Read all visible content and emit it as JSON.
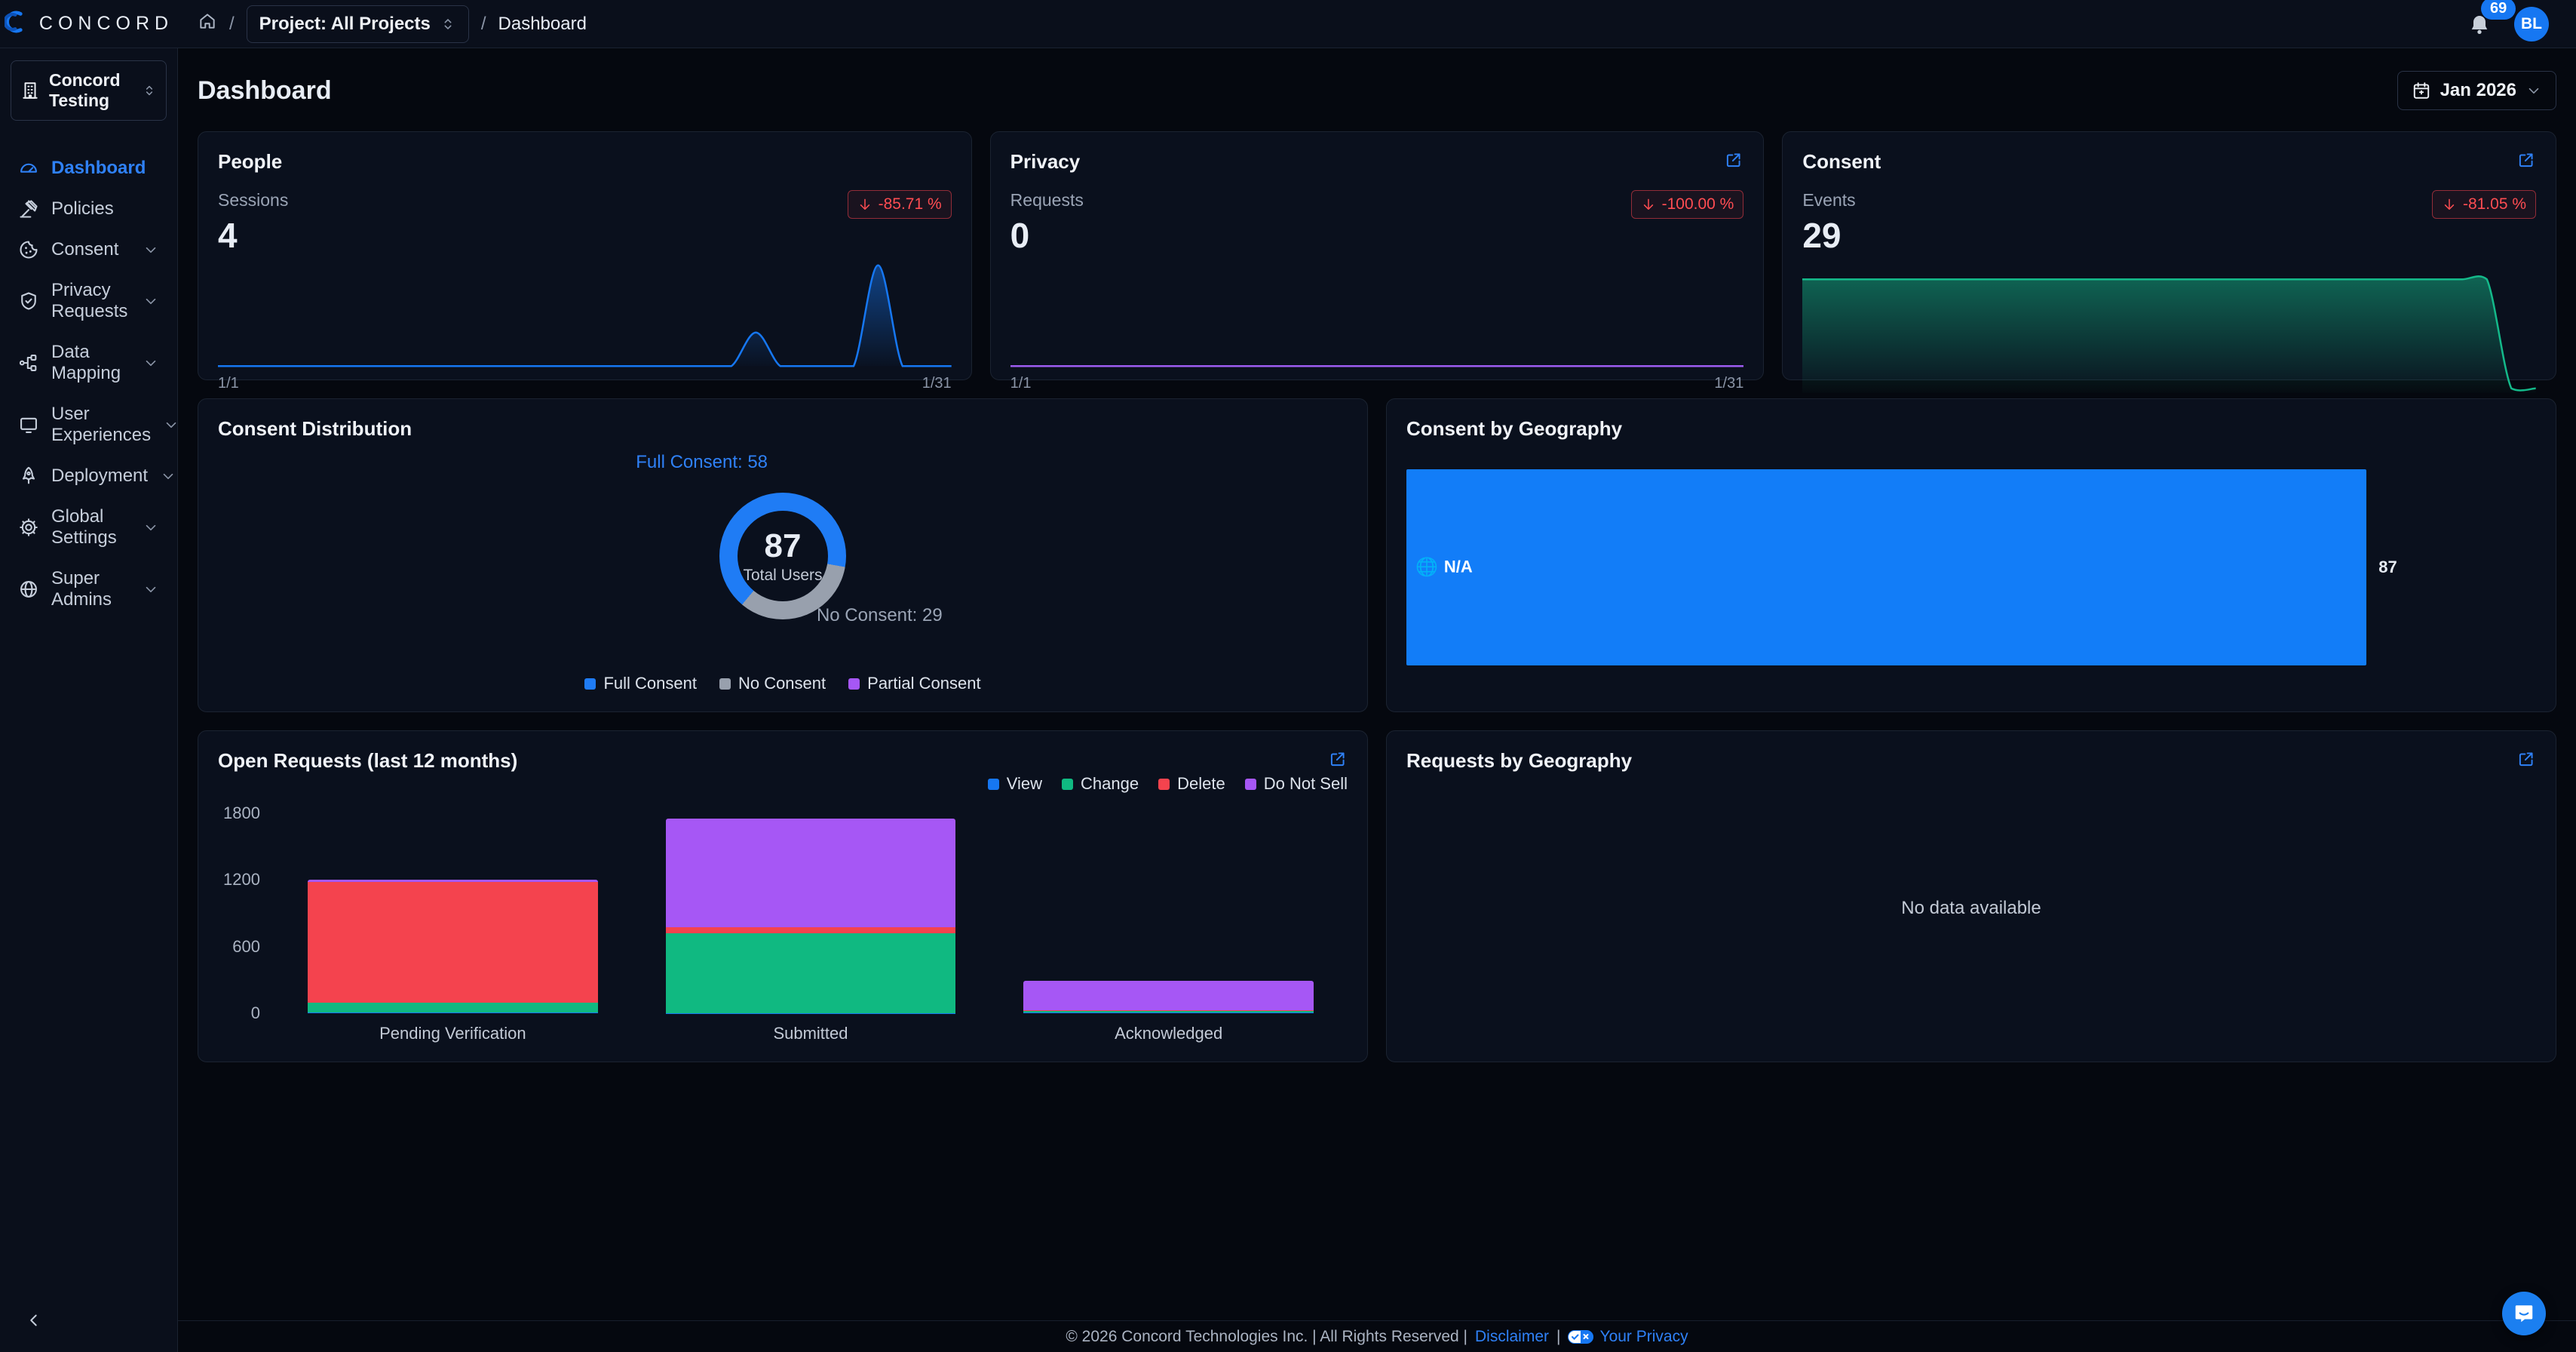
{
  "topbar": {
    "brand": "CONCORD",
    "breadcrumb_sep": "/",
    "project_selector": "Project: All Projects",
    "breadcrumb_current": "Dashboard",
    "notification_count": "69",
    "avatar_initials": "BL"
  },
  "sidebar": {
    "workspace": "Concord Testing",
    "items": [
      {
        "label": "Dashboard",
        "active": true,
        "expandable": false
      },
      {
        "label": "Policies",
        "active": false,
        "expandable": false
      },
      {
        "label": "Consent",
        "active": false,
        "expandable": true
      },
      {
        "label": "Privacy Requests",
        "active": false,
        "expandable": true
      },
      {
        "label": "Data Mapping",
        "active": false,
        "expandable": true
      },
      {
        "label": "User Experiences",
        "active": false,
        "expandable": true
      },
      {
        "label": "Deployment",
        "active": false,
        "expandable": true
      },
      {
        "label": "Global Settings",
        "active": false,
        "expandable": true
      },
      {
        "label": "Super Admins",
        "active": false,
        "expandable": true
      }
    ]
  },
  "header": {
    "title": "Dashboard",
    "period": "Jan 2026"
  },
  "cards": {
    "people": {
      "title": "People",
      "metric_label": "Sessions",
      "metric_value": "4",
      "delta": "-85.71 %"
    },
    "privacy": {
      "title": "Privacy",
      "metric_label": "Requests",
      "metric_value": "0",
      "delta": "-100.00 %"
    },
    "consent": {
      "title": "Consent",
      "metric_label": "Events",
      "metric_value": "29",
      "delta": "-81.05 %"
    },
    "consent_distribution": {
      "title": "Consent Distribution",
      "center_value": "87",
      "center_label": "Total Users",
      "callout_full": "Full Consent: 58",
      "callout_none": "No Consent: 29"
    },
    "consent_by_geography": {
      "title": "Consent by Geography",
      "bar_label": "N/A",
      "bar_value": "87"
    },
    "open_requests": {
      "title": "Open Requests (last 12 months)"
    },
    "requests_by_geography": {
      "title": "Requests by Geography",
      "empty": "No data available"
    }
  },
  "footer": {
    "copyright": "© 2026 Concord Technologies Inc. | All Rights Reserved |",
    "disclaimer_label": "Disclaimer",
    "sep": "|",
    "privacy_label": "Your Privacy"
  },
  "colors": {
    "accent_blue": "#1677f2",
    "active_link": "#2f81f7",
    "delta_red": "#ff4d52",
    "donut_gray": "#98a0ad",
    "purple": "#a657f5",
    "green": "#10b981"
  },
  "chart_data": [
    {
      "id": "people_sessions",
      "type": "area",
      "title": "People - Sessions",
      "x_start": "1/1",
      "x_end": "1/31",
      "ymax": 3.2,
      "color": "#1677f2",
      "values": [
        0,
        0,
        0,
        0,
        0,
        0,
        0,
        0,
        0,
        0,
        0,
        0,
        0,
        0,
        0,
        0,
        0,
        0,
        0,
        0,
        0,
        0,
        1,
        0,
        0,
        0,
        0,
        3,
        0,
        0,
        0
      ]
    },
    {
      "id": "privacy_requests",
      "type": "line",
      "title": "Privacy - Requests",
      "x_start": "1/1",
      "x_end": "1/31",
      "ymax": 1,
      "color": "#9d5cf0",
      "values": [
        0,
        0,
        0,
        0,
        0,
        0,
        0,
        0,
        0,
        0,
        0,
        0,
        0,
        0,
        0,
        0,
        0,
        0,
        0,
        0,
        0,
        0,
        0,
        0,
        0,
        0,
        0,
        0,
        0,
        0,
        0
      ]
    },
    {
      "id": "consent_events",
      "type": "area",
      "title": "Consent - Events",
      "x_start": "1/1",
      "x_end": "1/31",
      "ymax": 1.06,
      "color": "#14b98a",
      "values": [
        1,
        1,
        1,
        1,
        1,
        1,
        1,
        1,
        1,
        1,
        1,
        1,
        1,
        1,
        1,
        1,
        1,
        1,
        1,
        1,
        1,
        1,
        1,
        1,
        1,
        1,
        1,
        1,
        1,
        0.04,
        0.04
      ]
    },
    {
      "id": "consent_distribution",
      "type": "pie",
      "title": "Consent Distribution",
      "total": 87,
      "center_label": "Total Users",
      "start_angle": 220,
      "segments": [
        {
          "label": "Full Consent",
          "value": 58,
          "color": "#1f7cf5"
        },
        {
          "label": "No Consent",
          "value": 29,
          "color": "#98a0ad"
        },
        {
          "label": "Partial Consent",
          "value": 0,
          "color": "#a657f5"
        }
      ]
    },
    {
      "id": "consent_by_geography",
      "type": "bar",
      "title": "Consent by Geography",
      "orientation": "horizontal",
      "categories": [
        "N/A"
      ],
      "values": [
        87
      ],
      "color": "#127df8"
    },
    {
      "id": "open_requests",
      "type": "bar",
      "subtype": "stacked",
      "title": "Open Requests (last 12 months)",
      "categories": [
        "Pending Verification",
        "Submitted",
        "Acknowledged"
      ],
      "ymax": 1800,
      "yticks": [
        0,
        600,
        1200,
        1800
      ],
      "series": [
        {
          "name": "View",
          "color": "#1677f2",
          "values": [
            5,
            2,
            8
          ]
        },
        {
          "name": "Change",
          "color": "#10b981",
          "values": [
            90,
            715,
            12
          ]
        },
        {
          "name": "Delete",
          "color": "#f4434e",
          "values": [
            1090,
            55,
            5
          ]
        },
        {
          "name": "Do Not Sell",
          "color": "#a657f5",
          "values": [
            20,
            978,
            265
          ]
        }
      ]
    }
  ]
}
